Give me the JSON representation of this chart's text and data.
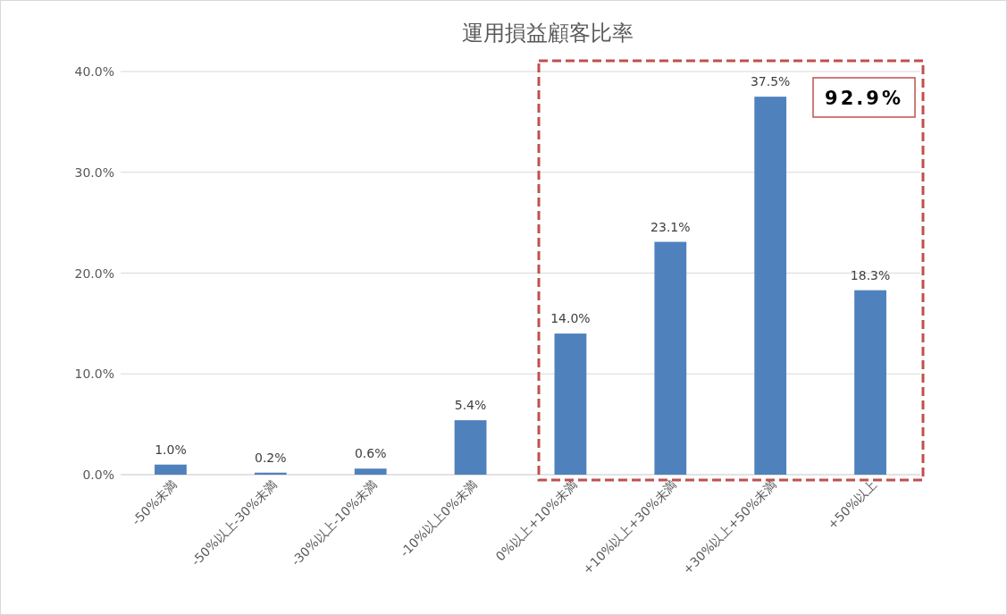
{
  "chart_data": {
    "type": "bar",
    "title": "運用損益顧客比率",
    "categories": [
      "-50%未満",
      "-50%以上-30%未満",
      "-30%以上-10%未満",
      "-10%以上0%未満",
      "0%以上+10%未満",
      "+10%以上+30%未満",
      "+30%以上+50%未満",
      "+50%以上"
    ],
    "values": [
      1.0,
      0.2,
      0.6,
      5.4,
      14.0,
      23.1,
      37.5,
      18.3
    ],
    "value_labels": [
      "1.0%",
      "0.2%",
      "0.6%",
      "5.4%",
      "14.0%",
      "23.1%",
      "37.5%",
      "18.3%"
    ],
    "color": "#4f81bd",
    "ylim": [
      0,
      40
    ],
    "yticks": [
      {
        "value": 0,
        "label": "0.0%"
      },
      {
        "value": 10,
        "label": "10.0%"
      },
      {
        "value": 20,
        "label": "20.0%"
      },
      {
        "value": 30,
        "label": "30.0%"
      },
      {
        "value": 40,
        "label": "40.0%"
      }
    ],
    "grid": "y",
    "annotations": [
      "92.9%"
    ]
  }
}
